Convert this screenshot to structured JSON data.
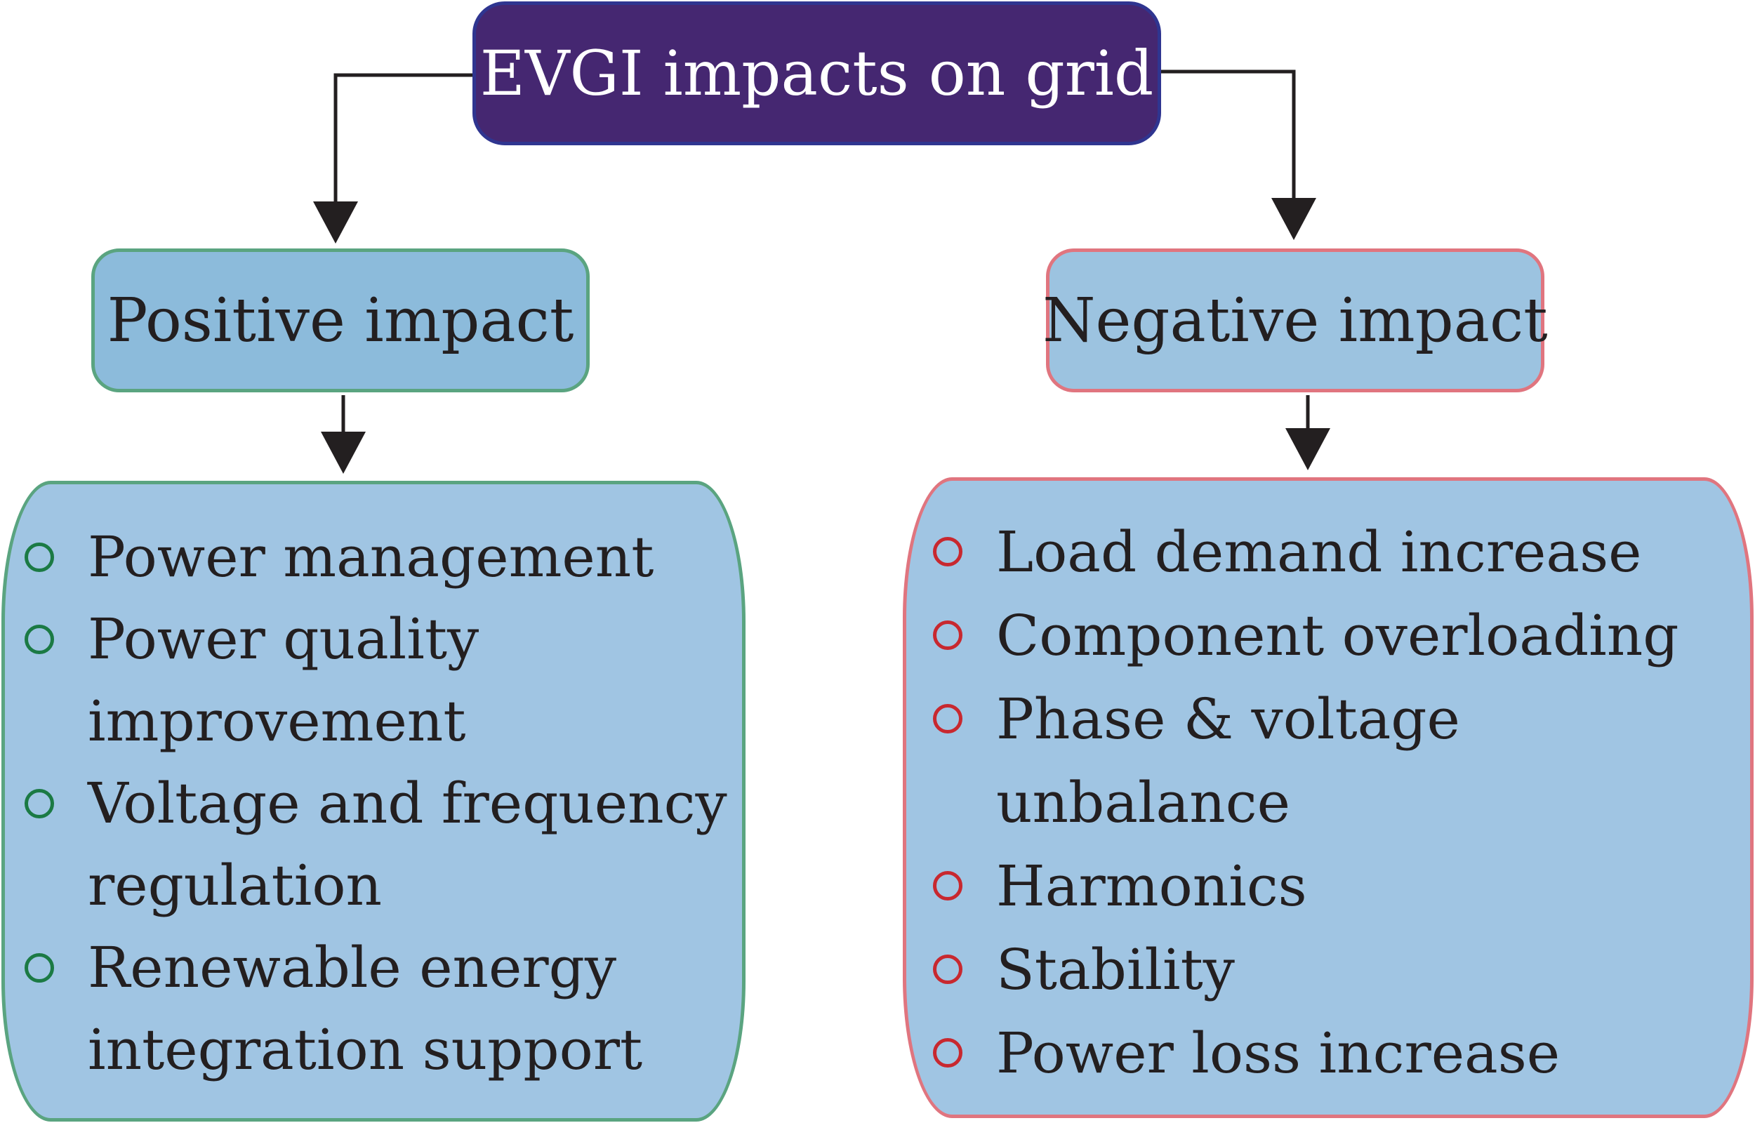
{
  "diagram": {
    "root": {
      "label": "EVGI impacts on grid",
      "fill_color": "#452771",
      "border_color": "#2f3590"
    },
    "branches": [
      {
        "key": "positive",
        "label": "Positive impact",
        "accent_color": "#5aa480",
        "bullet_color": "#1b7a44",
        "items": [
          "Power management",
          "Power quality\nimprovement",
          "Voltage and frequency\nregulation",
          "Renewable energy\nintegration support"
        ]
      },
      {
        "key": "negative",
        "label": "Negative impact",
        "accent_color": "#e0757f",
        "bullet_color": "#c8282f",
        "items": [
          "Load demand increase",
          "Component overloading",
          "Phase & voltage unbalance",
          "Harmonics",
          "Stability",
          "Power loss increase"
        ]
      }
    ],
    "node_fill_color": "#9cc3e0",
    "connector_color": "#231f20"
  }
}
